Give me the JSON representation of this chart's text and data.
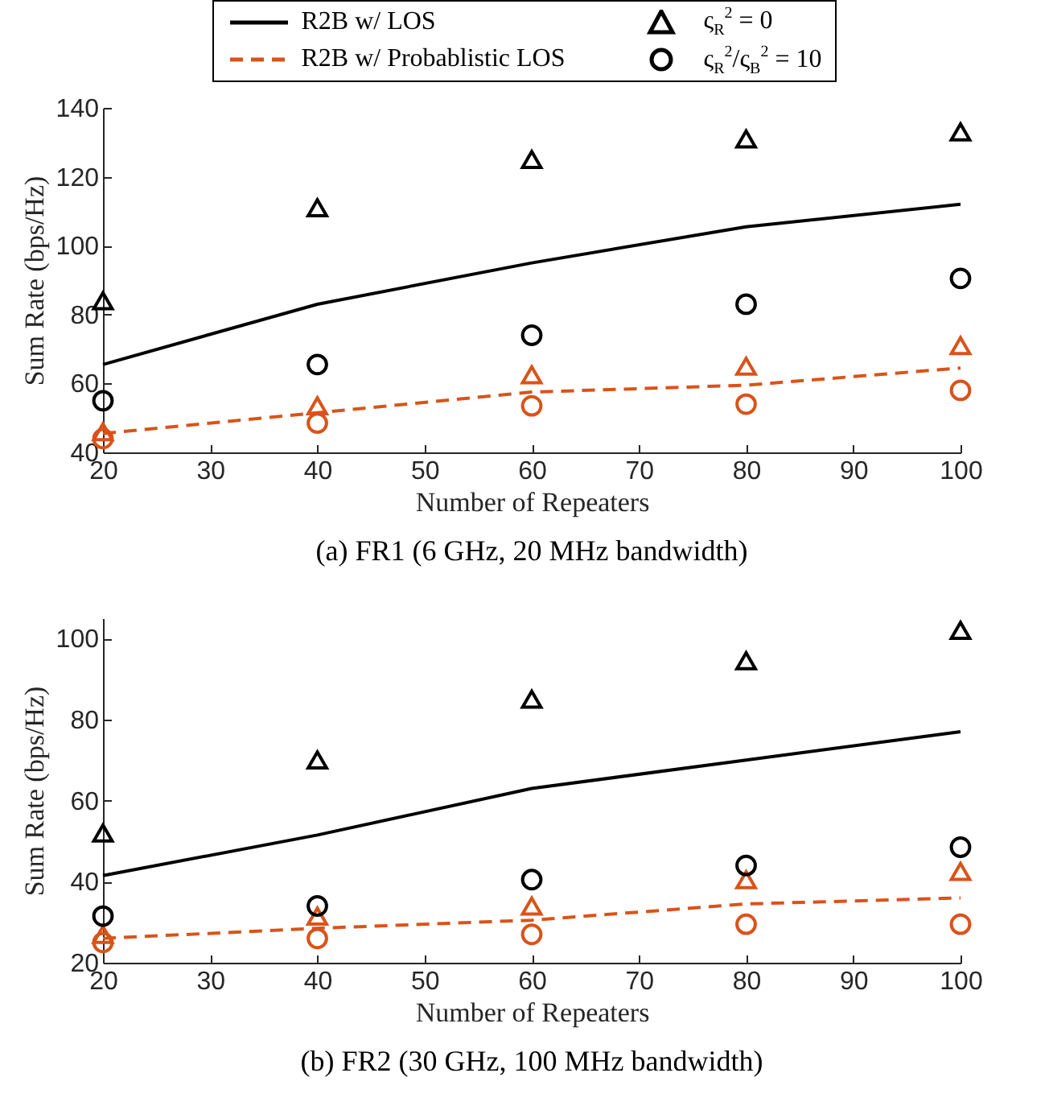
{
  "chart_data": [
    {
      "type": "line",
      "title": "(a) FR1 (6 GHz, 20 MHz bandwidth)",
      "xlabel": "Number of Repeaters",
      "ylabel": "Sum Rate (bps/Hz)",
      "x": [
        20,
        40,
        60,
        80,
        100
      ],
      "xlim": [
        20,
        100
      ],
      "xticks": [
        20,
        30,
        40,
        50,
        60,
        70,
        80,
        90,
        100
      ],
      "ylim": [
        40,
        140
      ],
      "yticks": [
        40,
        60,
        80,
        100,
        120,
        140
      ],
      "grid": false,
      "legend": "top",
      "series": [
        {
          "name": "R2B w/ LOS",
          "color": "#000000",
          "line_style": "solid",
          "values": [
            65.5,
            83,
            95,
            105.5,
            112
          ]
        },
        {
          "name": "R2B w/ Probablistic LOS",
          "color": "#d95319",
          "line_style": "dashed",
          "values": [
            45.5,
            51.5,
            57.5,
            59.5,
            64.5
          ]
        },
        {
          "name": "ς$_{R}$$^{2}$ = 0",
          "type": "scatter",
          "color": "#000000",
          "marker": "triangle",
          "values": [
            84,
            111,
            125,
            131,
            133
          ]
        },
        {
          "name": "ς$_{R}$$^{2}$/ς$_{B}$$^{2}$ = 10",
          "type": "scatter",
          "color": "#000000",
          "marker": "circle",
          "values": [
            55,
            65.5,
            74,
            83,
            90.5
          ]
        },
        {
          "type": "scatter",
          "color": "#d95319",
          "marker": "triangle",
          "values": [
            46,
            53.5,
            62.5,
            65,
            71
          ]
        },
        {
          "type": "scatter",
          "color": "#d95319",
          "marker": "circle",
          "values": [
            44,
            48.5,
            53.5,
            54,
            58
          ]
        }
      ]
    },
    {
      "type": "line",
      "title": "(b) FR2 (30 GHz, 100 MHz bandwidth)",
      "xlabel": "Number of Repeaters",
      "ylabel": "Sum Rate (bps/Hz)",
      "x": [
        20,
        40,
        60,
        80,
        100
      ],
      "xlim": [
        20,
        100
      ],
      "xticks": [
        20,
        30,
        40,
        50,
        60,
        70,
        80,
        90,
        100
      ],
      "ylim": [
        20,
        105
      ],
      "yticks": [
        20,
        40,
        60,
        80,
        100
      ],
      "grid": false,
      "series": [
        {
          "color": "#000000",
          "line_style": "solid",
          "values": [
            41.5,
            51.5,
            63,
            70,
            77
          ]
        },
        {
          "color": "#d95319",
          "line_style": "dashed",
          "values": [
            26,
            28.5,
            30.5,
            34.5,
            36
          ]
        },
        {
          "type": "scatter",
          "color": "#000000",
          "marker": "triangle",
          "values": [
            52,
            70,
            85,
            94.5,
            102
          ]
        },
        {
          "type": "scatter",
          "color": "#d95319",
          "marker": "triangle",
          "values": [
            27,
            31.5,
            34,
            40.5,
            42.5
          ]
        },
        {
          "type": "scatter",
          "color": "#000000",
          "marker": "circle",
          "values": [
            31.5,
            34,
            40.5,
            44,
            48.5
          ]
        },
        {
          "type": "scatter",
          "color": "#d95319",
          "marker": "circle",
          "values": [
            25,
            26,
            27,
            29.5,
            29.5
          ]
        }
      ]
    }
  ]
}
